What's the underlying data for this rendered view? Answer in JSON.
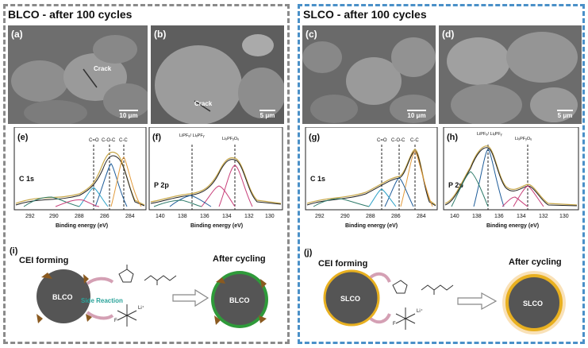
{
  "titles": {
    "left": "BLCO - after 100 cycles",
    "right": "SLCO - after 100 cycles"
  },
  "panels": {
    "a": {
      "label": "(a)",
      "scale": "10 μm",
      "annotation": "Crack"
    },
    "b": {
      "label": "(b)",
      "scale": "5 μm",
      "annotation": "Crack"
    },
    "c": {
      "label": "(c)",
      "scale": "10 μm"
    },
    "d": {
      "label": "(d)",
      "scale": "5 μm"
    },
    "e": {
      "label": "(e)",
      "spectrum": "C 1s",
      "peaks": [
        "C=O",
        "C-O-C",
        "C-C"
      ]
    },
    "f": {
      "label": "(f)",
      "spectrum": "P 2p",
      "peaks": [
        "LiPF₆/ LiₓPFᵧ",
        "LiₓPFᵧOᵤ"
      ]
    },
    "g": {
      "label": "(g)",
      "spectrum": "C 1s",
      "peaks": [
        "C=O",
        "C-O-C",
        "C-C"
      ]
    },
    "h": {
      "label": "(h)",
      "spectrum": "P 2p",
      "peaks": [
        "LiPF₆/ LiₓPFᵧ",
        "LiₓPFᵧOᵤ"
      ]
    },
    "i": {
      "label": "(i)",
      "cei": "CEI forming",
      "after": "After cycling",
      "particle": "BLCO",
      "reaction": "Side Reaction"
    },
    "j": {
      "label": "(j)",
      "cei": "CEI forming",
      "after": "After cycling",
      "particle": "SLCO"
    }
  },
  "axis": {
    "xlabel": "Binding energy  (eV)",
    "c1s_ticks": [
      "292",
      "290",
      "288",
      "286",
      "284"
    ],
    "p2p_ticks": [
      "140",
      "138",
      "136",
      "134",
      "132",
      "130"
    ]
  },
  "salt": {
    "li": "Li⁺",
    "f": "F"
  },
  "colors": {
    "left_border": "#8a8a8a",
    "right_border": "#4a90c8",
    "particle": "#555555",
    "cei_shell": "#e8b020",
    "side_reaction": "#2aa39a"
  }
}
